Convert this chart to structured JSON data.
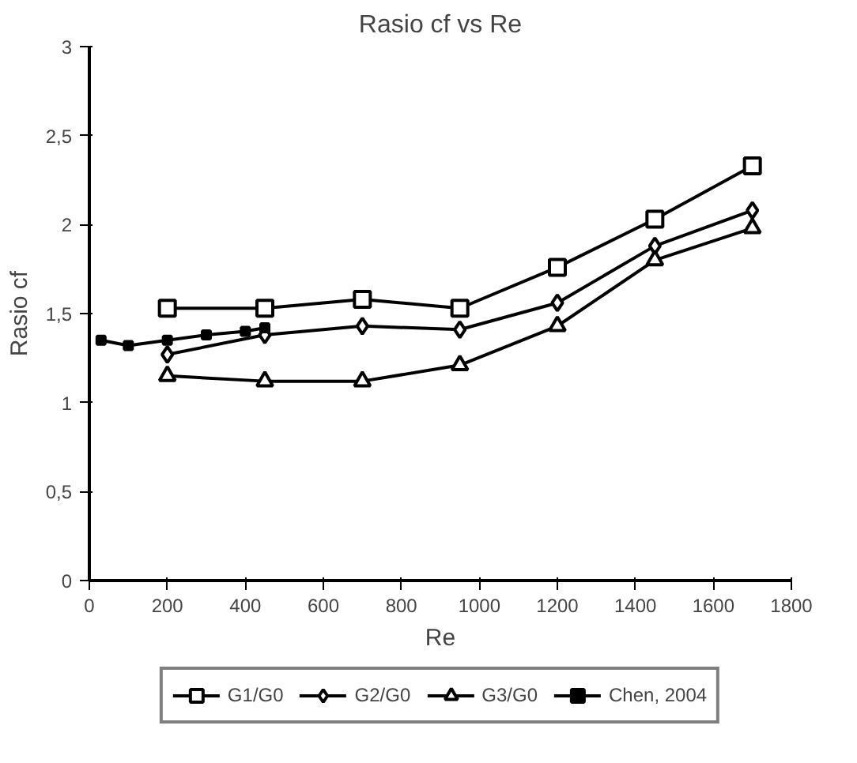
{
  "chart_data": {
    "type": "line",
    "title": "Rasio cf vs Re",
    "xlabel": "Re",
    "ylabel": "Rasio cf",
    "xlim": [
      0,
      1800
    ],
    "xticks": [
      0,
      200,
      400,
      600,
      800,
      1000,
      1200,
      1400,
      1600,
      1800
    ],
    "ylim": [
      0,
      3
    ],
    "yticks": [
      0,
      {
        "value": 0.5,
        "label": "0,5"
      },
      1,
      {
        "value": 1.5,
        "label": "1,5"
      },
      2,
      {
        "value": 2.5,
        "label": "2,5"
      },
      3
    ],
    "grid": false,
    "legend": "bottom",
    "line_style": "solid",
    "series": [
      {
        "name": "G1/G0",
        "color": "#000000",
        "marker": "square",
        "x": [
          200,
          450,
          700,
          950,
          1200,
          1450,
          1700
        ],
        "values": [
          1.53,
          1.53,
          1.58,
          1.53,
          1.76,
          2.03,
          2.33
        ]
      },
      {
        "name": "G2/G0",
        "color": "#000000",
        "marker": "diamond",
        "x": [
          200,
          450,
          700,
          950,
          1200,
          1450,
          1700
        ],
        "values": [
          1.27,
          1.38,
          1.43,
          1.41,
          1.56,
          1.88,
          2.08
        ]
      },
      {
        "name": "G3/G0",
        "color": "#000000",
        "marker": "triangle",
        "x": [
          200,
          450,
          700,
          950,
          1200,
          1450,
          1700
        ],
        "values": [
          1.15,
          1.12,
          1.12,
          1.21,
          1.43,
          1.8,
          1.98
        ]
      },
      {
        "name": "Chen, 2004",
        "color": "#000000",
        "marker": "square",
        "x": [
          30,
          100,
          200,
          300,
          400,
          450
        ],
        "values": [
          1.35,
          1.32,
          1.35,
          1.38,
          1.4,
          1.42
        ]
      }
    ]
  }
}
